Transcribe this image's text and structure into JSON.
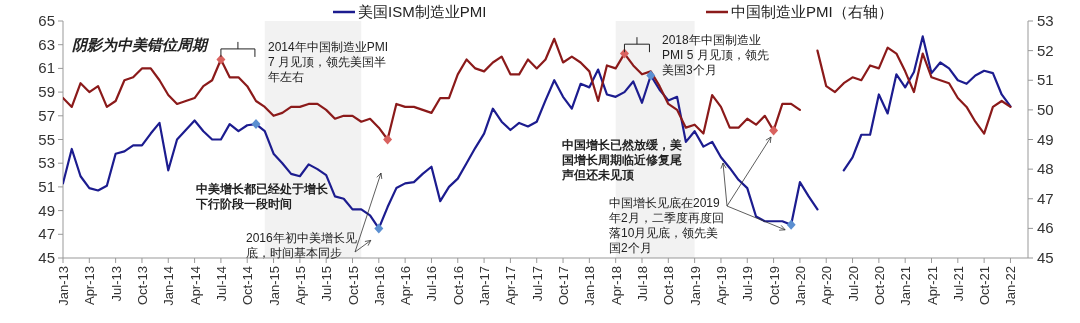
{
  "chart_data": {
    "type": "line",
    "x": [
      "2013-01",
      "2013-02",
      "2013-03",
      "2013-04",
      "2013-05",
      "2013-06",
      "2013-07",
      "2013-08",
      "2013-09",
      "2013-10",
      "2013-11",
      "2013-12",
      "2014-01",
      "2014-02",
      "2014-03",
      "2014-04",
      "2014-05",
      "2014-06",
      "2014-07",
      "2014-08",
      "2014-09",
      "2014-10",
      "2014-11",
      "2014-12",
      "2015-01",
      "2015-02",
      "2015-03",
      "2015-04",
      "2015-05",
      "2015-06",
      "2015-07",
      "2015-08",
      "2015-09",
      "2015-10",
      "2015-11",
      "2015-12",
      "2016-01",
      "2016-02",
      "2016-03",
      "2016-04",
      "2016-05",
      "2016-06",
      "2016-07",
      "2016-08",
      "2016-09",
      "2016-10",
      "2016-11",
      "2016-12",
      "2017-01",
      "2017-02",
      "2017-03",
      "2017-04",
      "2017-05",
      "2017-06",
      "2017-07",
      "2017-08",
      "2017-09",
      "2017-10",
      "2017-11",
      "2017-12",
      "2018-01",
      "2018-02",
      "2018-03",
      "2018-04",
      "2018-05",
      "2018-06",
      "2018-07",
      "2018-08",
      "2018-09",
      "2018-10",
      "2018-11",
      "2018-12",
      "2019-01",
      "2019-02",
      "2019-03",
      "2019-04",
      "2019-05",
      "2019-06",
      "2019-07",
      "2019-08",
      "2019-09",
      "2019-10",
      "2019-11",
      "2019-12",
      "2020-01",
      "2020-02",
      "2020-03",
      "2020-04",
      "2020-05",
      "2020-06",
      "2020-07",
      "2020-08",
      "2020-09",
      "2020-10",
      "2020-11",
      "2020-12",
      "2021-01",
      "2021-02",
      "2021-03",
      "2021-04",
      "2021-05",
      "2021-06",
      "2021-07",
      "2021-08",
      "2021-09",
      "2021-10",
      "2021-11",
      "2021-12",
      "2022-01"
    ],
    "series": [
      {
        "name": "美国ISM制造业PMI",
        "color": "#1c1c8f",
        "values": [
          51.3,
          54.2,
          51.9,
          50.9,
          50.7,
          51.1,
          53.8,
          54.0,
          54.5,
          54.5,
          55.5,
          56.4,
          52.4,
          55.0,
          55.8,
          56.6,
          55.7,
          55.0,
          55.0,
          56.3,
          55.7,
          56.2,
          56.3,
          55.7,
          53.8,
          53.0,
          52.1,
          51.9,
          52.9,
          52.5,
          52.0,
          50.2,
          50.0,
          49.1,
          49.1,
          48.6,
          47.5,
          49.3,
          50.9,
          51.3,
          51.4,
          52.1,
          52.7,
          49.8,
          51.0,
          51.7,
          53.0,
          54.3,
          55.5,
          57.6,
          56.5,
          55.8,
          56.4,
          56.1,
          56.5,
          58.3,
          60.0,
          58.6,
          57.6,
          59.7,
          59.4,
          60.9,
          58.8,
          58.6,
          59.0,
          59.9,
          58.1,
          60.4,
          59.2,
          58.3,
          58.6,
          54.8,
          55.7,
          54.4,
          54.8,
          53.5,
          52.6,
          51.6,
          50.9,
          48.5,
          48.1,
          48.1,
          48.1,
          47.8,
          51.4,
          50.2,
          49.1,
          null,
          null,
          52.4,
          53.5,
          55.4,
          55.4,
          58.8,
          57.2,
          60.5,
          59.4,
          60.7,
          63.7,
          60.6,
          61.5,
          61.0,
          60.0,
          59.7,
          60.4,
          60.8,
          60.6,
          58.8,
          57.8
        ]
      },
      {
        "name": "中国制造业PMI（右轴）",
        "color": "#8b1a1a",
        "axis": "y2",
        "values": [
          50.4,
          50.1,
          50.9,
          50.6,
          50.8,
          50.1,
          50.3,
          51.0,
          51.1,
          51.4,
          51.4,
          51.0,
          50.5,
          50.2,
          50.3,
          50.4,
          50.8,
          51.0,
          51.7,
          51.1,
          51.1,
          50.8,
          50.3,
          50.1,
          49.8,
          49.9,
          50.1,
          50.1,
          50.2,
          50.2,
          50.0,
          49.7,
          49.8,
          49.8,
          49.6,
          49.7,
          49.4,
          49.0,
          50.2,
          50.1,
          50.1,
          50.0,
          49.9,
          50.4,
          50.4,
          51.2,
          51.7,
          51.4,
          51.3,
          51.6,
          51.8,
          51.2,
          51.2,
          51.7,
          51.4,
          51.7,
          52.4,
          51.6,
          51.8,
          51.6,
          51.3,
          50.3,
          51.5,
          51.4,
          51.9,
          51.5,
          51.2,
          51.3,
          50.8,
          50.2,
          50.0,
          49.4,
          49.5,
          49.2,
          50.5,
          50.1,
          49.4,
          49.4,
          49.7,
          49.5,
          49.8,
          49.3,
          50.2,
          50.2,
          50.0,
          null,
          52.0,
          50.8,
          50.6,
          50.9,
          51.1,
          51.0,
          51.5,
          51.4,
          52.1,
          51.9,
          51.3,
          50.6,
          51.9,
          51.1,
          51.0,
          50.9,
          50.4,
          50.1,
          49.6,
          49.2,
          50.1,
          50.3,
          50.1
        ]
      },
      {
        "type": "scatter",
        "marker": "diamond",
        "color": "#5b8fd1",
        "x": [
          "2014-11",
          "2016-01",
          "2018-08",
          "2019-12"
        ],
        "values": [
          56.3,
          47.5,
          60.4,
          47.8
        ]
      },
      {
        "type": "scatter",
        "marker": "diamond",
        "color": "#d9625f",
        "axis": "y2",
        "x": [
          "2014-07",
          "2016-02",
          "2018-05",
          "2019-10"
        ],
        "values": [
          51.7,
          49.0,
          51.9,
          49.3
        ]
      }
    ],
    "xlim": [
      "2013-01",
      "2022-03"
    ],
    "xticks": [
      {
        "value": "2013-01",
        "label": "Jan-13"
      },
      {
        "value": "2013-04",
        "label": "Apr-13"
      },
      {
        "value": "2013-07",
        "label": "Jul-13"
      },
      {
        "value": "2013-10",
        "label": "Oct-13"
      },
      {
        "value": "2014-01",
        "label": "Jan-14"
      },
      {
        "value": "2014-04",
        "label": "Apr-14"
      },
      {
        "value": "2014-07",
        "label": "Jul-14"
      },
      {
        "value": "2014-10",
        "label": "Oct-14"
      },
      {
        "value": "2015-01",
        "label": "Jan-15"
      },
      {
        "value": "2015-04",
        "label": "Apr-15"
      },
      {
        "value": "2015-07",
        "label": "Jul-15"
      },
      {
        "value": "2015-10",
        "label": "Oct-15"
      },
      {
        "value": "2016-01",
        "label": "Jan-16"
      },
      {
        "value": "2016-04",
        "label": "Apr-16"
      },
      {
        "value": "2016-07",
        "label": "Jul-16"
      },
      {
        "value": "2016-10",
        "label": "Oct-16"
      },
      {
        "value": "2017-01",
        "label": "Jan-17"
      },
      {
        "value": "2017-04",
        "label": "Apr-17"
      },
      {
        "value": "2017-07",
        "label": "Jul-17"
      },
      {
        "value": "2017-10",
        "label": "Oct-17"
      },
      {
        "value": "2018-01",
        "label": "Jan-18"
      },
      {
        "value": "2018-04",
        "label": "Apr-18"
      },
      {
        "value": "2018-07",
        "label": "Jul-18"
      },
      {
        "value": "2018-10",
        "label": "Oct-18"
      },
      {
        "value": "2019-01",
        "label": "Jan-19"
      },
      {
        "value": "2019-04",
        "label": "Apr-19"
      },
      {
        "value": "2019-07",
        "label": "Jul-19"
      },
      {
        "value": "2019-10",
        "label": "Oct-19"
      },
      {
        "value": "2020-01",
        "label": "Jan-20"
      },
      {
        "value": "2020-04",
        "label": "Apr-20"
      },
      {
        "value": "2020-07",
        "label": "Jul-20"
      },
      {
        "value": "2020-10",
        "label": "Oct-20"
      },
      {
        "value": "2021-01",
        "label": "Jan-21"
      },
      {
        "value": "2021-04",
        "label": "Apr-21"
      },
      {
        "value": "2021-07",
        "label": "Jul-21"
      },
      {
        "value": "2021-10",
        "label": "Oct-21"
      },
      {
        "value": "2022-01",
        "label": "Jan-22"
      }
    ],
    "ylim": [
      45,
      65
    ],
    "yticks": [
      45,
      47,
      49,
      51,
      53,
      55,
      57,
      59,
      61,
      63,
      65
    ],
    "y2lim": [
      45,
      53
    ],
    "y2ticks": [
      45,
      46,
      47,
      48,
      49,
      50,
      51,
      52,
      53
    ],
    "bands": [
      {
        "axis": "x",
        "from": "2014-12",
        "to": "2015-11",
        "color": "#f2f2f2"
      },
      {
        "axis": "x",
        "from": "2018-04",
        "to": "2019-01",
        "color": "#f2f2f2"
      }
    ],
    "legend": "top",
    "grid": false,
    "annotations": [
      "阴影为中美错位周期",
      {
        "text": "2014年中国制造业PMI 7 月见顶，领先美国半年左右",
        "x": "2014-07",
        "y": 61.8
      },
      "中美增长都已经处于增长下行阶段一段时间",
      {
        "text": "2016年初中美增长见底，时间基本同步",
        "x": "2016-01",
        "y": 47.5
      },
      {
        "text": "2018年中国制造业PMI 5 月见顶，领先美国3个月",
        "x": "2018-05",
        "y": 62.2
      },
      "中国增长已然放缓，美国增长周期临近修复尾声但还未见顶",
      {
        "text": "中国增长见底在2019年2月，二季度再度回落10月见底，领先美国2个月",
        "x": "2019-12",
        "y": 47.8
      }
    ]
  }
}
